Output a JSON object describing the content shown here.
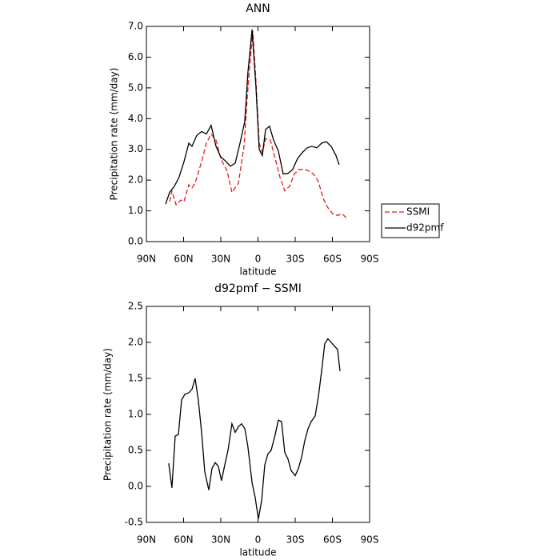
{
  "chart_data": [
    {
      "type": "line",
      "title": "ANN",
      "x_label": "latitude",
      "y_label": "Precipitation rate (mm/day)",
      "xlim": [
        90,
        -90
      ],
      "xticks": [
        {
          "value": 90,
          "label": "90N"
        },
        {
          "value": 60,
          "label": "60N"
        },
        {
          "value": 30,
          "label": "30N"
        },
        0,
        {
          "value": -30,
          "label": "30S"
        },
        {
          "value": -60,
          "label": "60S"
        },
        {
          "value": -90,
          "label": "90S"
        }
      ],
      "ylim": [
        0,
        7
      ],
      "yticks": [
        {
          "value": 0,
          "label": "0.0"
        },
        {
          "value": 1,
          "label": "1.0"
        },
        {
          "value": 2,
          "label": "2.0"
        },
        {
          "value": 3,
          "label": "3.0"
        },
        {
          "value": 4,
          "label": "4.0"
        },
        {
          "value": 5,
          "label": "5.0"
        },
        {
          "value": 6,
          "label": "6.0"
        },
        {
          "value": 7,
          "label": "7.0"
        }
      ],
      "legend": "right",
      "series": [
        {
          "name": "SSMI",
          "color": "#e41a1c",
          "dash": true,
          "x": [
            71.3,
            69.4,
            66.1,
            62.3,
            59.7,
            55.8,
            53.2,
            50.7,
            45.5,
            41.6,
            37.8,
            33.9,
            30,
            24.9,
            21,
            15.8,
            11.3,
            8.1,
            4.2,
            1.6,
            -1,
            -3.5,
            -6.1,
            -10,
            -13.9,
            -17.7,
            -21.6,
            -25.5,
            -29.3,
            -33.2,
            -37.1,
            -41,
            -44.8,
            -48.7,
            -52.6,
            -56.4,
            -60.3,
            -64.2,
            -68,
            -71.9
          ],
          "values": [
            1.3,
            1.65,
            1.2,
            1.35,
            1.3,
            1.85,
            1.75,
            1.9,
            2.6,
            3.2,
            3.5,
            3.3,
            2.7,
            2.3,
            1.6,
            1.9,
            3.1,
            5.0,
            6.85,
            5.2,
            3.2,
            2.9,
            3.35,
            3.3,
            2.7,
            2.1,
            1.65,
            1.8,
            2.2,
            2.35,
            2.35,
            2.3,
            2.2,
            1.95,
            1.4,
            1.1,
            0.9,
            0.85,
            0.9,
            0.75
          ]
        },
        {
          "name": "d92pmf",
          "color": "#000000",
          "dash": false,
          "x": [
            74.5,
            71.3,
            67.4,
            63.6,
            59.7,
            55.8,
            53.2,
            49.4,
            45.5,
            41.6,
            37.8,
            33.9,
            30,
            26.1,
            22.3,
            18.4,
            14.5,
            10.7,
            8.1,
            4.8,
            1.6,
            -1,
            -3.5,
            -6.1,
            -9.3,
            -12.6,
            -16.4,
            -20.3,
            -24.2,
            -28,
            -31.9,
            -35.8,
            -39.6,
            -43.5,
            -47.4,
            -51.3,
            -55.1,
            -59,
            -62.9,
            -65.4
          ],
          "values": [
            1.22,
            1.6,
            1.8,
            2.1,
            2.6,
            3.2,
            3.1,
            3.45,
            3.58,
            3.5,
            3.78,
            3.1,
            2.75,
            2.62,
            2.45,
            2.55,
            3.2,
            3.9,
            5.5,
            6.9,
            5.0,
            3.0,
            2.8,
            3.65,
            3.75,
            3.3,
            2.95,
            2.2,
            2.22,
            2.35,
            2.7,
            2.9,
            3.05,
            3.1,
            3.05,
            3.2,
            3.25,
            3.1,
            2.8,
            2.5
          ]
        }
      ]
    },
    {
      "type": "line",
      "title": "d92pmf − SSMI",
      "x_label": "latitude",
      "y_label": "Precipitation rate (mm/day)",
      "xlim": [
        90,
        -90
      ],
      "xticks": [
        {
          "value": 90,
          "label": "90N"
        },
        {
          "value": 60,
          "label": "60N"
        },
        {
          "value": 30,
          "label": "30N"
        },
        0,
        {
          "value": -30,
          "label": "30S"
        },
        {
          "value": -60,
          "label": "60S"
        },
        {
          "value": -90,
          "label": "90S"
        }
      ],
      "ylim": [
        -0.5,
        2.5
      ],
      "yticks": [
        -0.5,
        {
          "value": 0,
          "label": "0.0"
        },
        0.5,
        {
          "value": 1,
          "label": "1.0"
        },
        1.5,
        {
          "value": 2,
          "label": "2.0"
        },
        2.5
      ],
      "color": "#000000",
      "x": [
        72,
        69.4,
        66.8,
        64.2,
        61.6,
        59,
        55.8,
        53.2,
        50.7,
        48.1,
        45.5,
        42.9,
        39.7,
        37.1,
        34.5,
        32,
        29.4,
        26.8,
        24.2,
        21,
        18.4,
        15.8,
        13.2,
        10.6,
        8.1,
        4.8,
        2.3,
        -0.3,
        -2.9,
        -5.5,
        -8,
        -10.6,
        -13.9,
        -16.4,
        -19,
        -21.6,
        -24.2,
        -26.7,
        -30,
        -32.6,
        -35.1,
        -37.7,
        -40.3,
        -42.9,
        -46.1,
        -48.7,
        -51.3,
        -53.8,
        -56.4,
        -59,
        -61.6,
        -64.2,
        -66.1
      ],
      "values": [
        0.32,
        -0.02,
        0.7,
        0.72,
        1.2,
        1.28,
        1.3,
        1.35,
        1.5,
        1.2,
        0.75,
        0.2,
        -0.05,
        0.25,
        0.33,
        0.28,
        0.08,
        0.3,
        0.5,
        0.87,
        0.75,
        0.83,
        0.87,
        0.8,
        0.55,
        0.05,
        -0.15,
        -0.45,
        -0.2,
        0.3,
        0.45,
        0.5,
        0.72,
        0.92,
        0.9,
        0.47,
        0.38,
        0.22,
        0.15,
        0.25,
        0.4,
        0.63,
        0.8,
        0.9,
        0.98,
        1.25,
        1.6,
        1.98,
        2.05,
        2.0,
        1.95,
        1.9,
        1.6
      ]
    }
  ]
}
